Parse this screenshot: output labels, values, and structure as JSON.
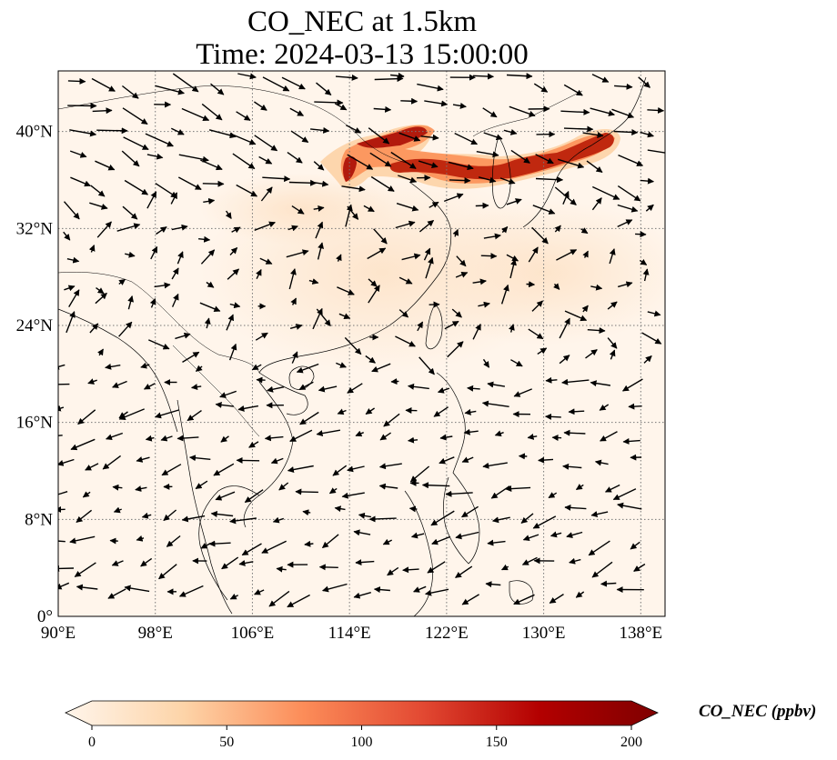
{
  "title": {
    "line1": "CO_NEC at 1.5km",
    "line2": "Time: 2024-03-13 15:00:00"
  },
  "map": {
    "extent": {
      "lon": [
        90,
        140
      ],
      "lat": [
        0,
        45
      ]
    },
    "lon_ticks": [
      {
        "value": 90,
        "label": "90°E"
      },
      {
        "value": 98,
        "label": "98°E"
      },
      {
        "value": 106,
        "label": "106°E"
      },
      {
        "value": 114,
        "label": "114°E"
      },
      {
        "value": 122,
        "label": "122°E"
      },
      {
        "value": 130,
        "label": "130°E"
      },
      {
        "value": 138,
        "label": "138°E"
      }
    ],
    "lat_ticks": [
      {
        "value": 0,
        "label": "0°"
      },
      {
        "value": 8,
        "label": "8°N"
      },
      {
        "value": 16,
        "label": "16°N"
      },
      {
        "value": 24,
        "label": "24°N"
      },
      {
        "value": 32,
        "label": "32°N"
      },
      {
        "value": 40,
        "label": "40°N"
      }
    ],
    "gridlines": true,
    "background_color": "#fff5eb",
    "plume_color_strong": "#b21a0d",
    "plume_color_light": "#fdd8b0"
  },
  "colorbar": {
    "label": "CO_NEC (ppbv)",
    "colormap": "Oranges-Reds",
    "range": [
      0,
      200
    ],
    "extend": "both",
    "ticks": [
      {
        "value": 0,
        "label": "0"
      },
      {
        "value": 50,
        "label": "50"
      },
      {
        "value": 100,
        "label": "100"
      },
      {
        "value": 150,
        "label": "150"
      },
      {
        "value": 200,
        "label": "200"
      }
    ],
    "colors": [
      "#fff5eb",
      "#fdd4a8",
      "#fc8d59",
      "#e34a33",
      "#b30000",
      "#7f0000"
    ]
  }
}
